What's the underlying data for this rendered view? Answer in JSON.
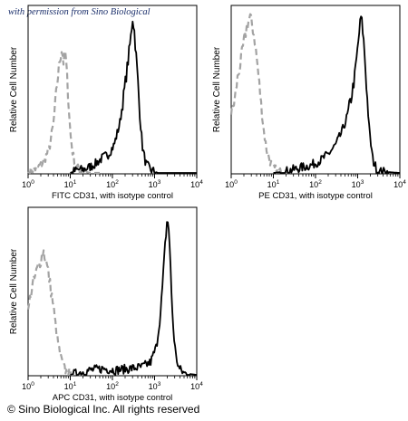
{
  "watermark": "with permission from Sino Biological",
  "copyright": "© Sino Biological Inc. All rights reserved",
  "colors": {
    "isotype": "#a3a3a3",
    "antibody": "#000000",
    "frame": "#000000"
  },
  "chart_data": [
    {
      "type": "histogram",
      "xscale": "log",
      "xlim": [
        1,
        10000
      ],
      "ylim": [
        0,
        100
      ],
      "xlabel": "FITC CD31, with isotype control",
      "ylabel": "Relative Cell Number",
      "xticks": [
        {
          "base": "10",
          "exp": "0"
        },
        {
          "base": "10",
          "exp": "1"
        },
        {
          "base": "10",
          "exp": "2"
        },
        {
          "base": "10",
          "exp": "3"
        },
        {
          "base": "10",
          "exp": "4"
        }
      ],
      "series": [
        {
          "role": "isotype",
          "style": "dashed",
          "x": [
            1.0,
            1.3,
            1.6,
            2.0,
            2.5,
            3.2,
            4.0,
            5.0,
            5.6,
            6.3,
            7.0,
            7.6,
            8.2,
            9.0,
            10.0,
            11.5,
            13.5,
            16.0,
            20.0,
            30.0,
            50.0
          ],
          "y": [
            0,
            2,
            3,
            5,
            9,
            16,
            32,
            60,
            72,
            80,
            70,
            78,
            66,
            48,
            26,
            12,
            5,
            2,
            1,
            0,
            0
          ]
        },
        {
          "role": "antibody",
          "style": "solid",
          "x": [
            10.0,
            15.0,
            20.0,
            30.0,
            40.0,
            60.0,
            80.0,
            110.0,
            150.0,
            190.0,
            230.0,
            270.0,
            300.0,
            330.0,
            360.0,
            400.0,
            450.0,
            520.0,
            620.0,
            800.0,
            1200.0,
            10000.0
          ],
          "y": [
            0,
            2,
            2,
            4,
            6,
            10,
            12,
            18,
            32,
            52,
            70,
            86,
            100,
            92,
            78,
            60,
            36,
            16,
            6,
            2,
            0,
            0
          ]
        }
      ]
    },
    {
      "type": "histogram",
      "xscale": "log",
      "xlim": [
        1,
        10000
      ],
      "ylim": [
        0,
        100
      ],
      "xlabel": "PE CD31, with isotype control",
      "ylabel": "Relative Cell Number",
      "xticks": [
        {
          "base": "10",
          "exp": "0"
        },
        {
          "base": "10",
          "exp": "1"
        },
        {
          "base": "10",
          "exp": "2"
        },
        {
          "base": "10",
          "exp": "3"
        },
        {
          "base": "10",
          "exp": "4"
        }
      ],
      "series": [
        {
          "role": "isotype",
          "style": "dashed",
          "x": [
            1.0,
            1.2,
            1.4,
            1.7,
            2.0,
            2.4,
            2.8,
            3.2,
            3.6,
            4.1,
            4.6,
            5.2,
            6.0,
            7.0,
            8.5,
            10.0,
            13.0,
            17.0,
            25.0
          ],
          "y": [
            38,
            46,
            60,
            72,
            84,
            95,
            100,
            94,
            86,
            72,
            58,
            42,
            26,
            14,
            7,
            3,
            1,
            0,
            0
          ]
        },
        {
          "role": "antibody",
          "style": "solid",
          "x": [
            10.0,
            20.0,
            40.0,
            80.0,
            130.0,
            200.0,
            300.0,
            420.0,
            560.0,
            700.0,
            850.0,
            1000.0,
            1100.0,
            1200.0,
            1300.0,
            1450.0,
            1650.0,
            1900.0,
            2300.0,
            3000.0,
            10000.0
          ],
          "y": [
            0,
            1,
            3,
            5,
            8,
            12,
            18,
            26,
            36,
            48,
            62,
            80,
            92,
            100,
            94,
            78,
            52,
            26,
            8,
            1,
            0
          ]
        }
      ]
    },
    {
      "type": "histogram",
      "xscale": "log",
      "xlim": [
        1,
        10000
      ],
      "ylim": [
        0,
        100
      ],
      "xlabel": "APC CD31, with isotype control",
      "ylabel": "Relative Cell Number",
      "xticks": [
        {
          "base": "10",
          "exp": "0"
        },
        {
          "base": "10",
          "exp": "1"
        },
        {
          "base": "10",
          "exp": "2"
        },
        {
          "base": "10",
          "exp": "3"
        },
        {
          "base": "10",
          "exp": "4"
        }
      ],
      "series": [
        {
          "role": "isotype",
          "style": "dashed",
          "x": [
            1.0,
            1.15,
            1.3,
            1.5,
            1.75,
            2.0,
            2.3,
            2.6,
            3.0,
            3.4,
            3.9,
            4.4,
            5.0,
            5.8,
            6.8,
            8.0,
            10.0,
            14.0,
            20.0
          ],
          "y": [
            40,
            52,
            58,
            64,
            70,
            74,
            80,
            74,
            66,
            56,
            46,
            34,
            22,
            12,
            6,
            2,
            1,
            0,
            0
          ]
        },
        {
          "role": "antibody",
          "style": "solid",
          "x": [
            10.0,
            30.0,
            60.0,
            120.0,
            250.0,
            500.0,
            800.0,
            1100.0,
            1400.0,
            1650.0,
            1850.0,
            2000.0,
            2150.0,
            2300.0,
            2500.0,
            2800.0,
            3200.0,
            3800.0,
            5000.0,
            10000.0
          ],
          "y": [
            0,
            3,
            4,
            3,
            4,
            5,
            8,
            18,
            40,
            68,
            90,
            100,
            96,
            80,
            54,
            28,
            12,
            4,
            1,
            0
          ]
        }
      ]
    }
  ]
}
